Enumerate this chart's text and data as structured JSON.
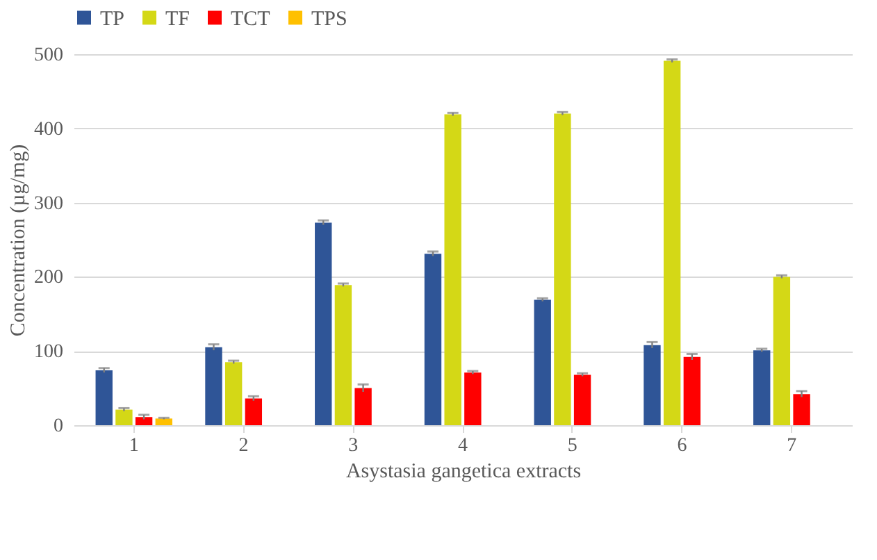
{
  "chart_data": {
    "type": "bar",
    "xlabel": "Asystasia gangetica extracts",
    "ylabel": "Concentration (µg/mg)",
    "categories": [
      "1",
      "2",
      "3",
      "4",
      "5",
      "6",
      "7"
    ],
    "series": [
      {
        "name": "TP",
        "color": "#2f5597",
        "values": [
          74,
          105,
          273,
          231,
          169,
          108,
          101
        ],
        "errors": [
          3,
          4,
          3,
          3,
          2,
          4,
          2
        ]
      },
      {
        "name": "TF",
        "color": "#d4d816",
        "values": [
          21,
          85,
          189,
          419,
          420,
          491,
          200
        ],
        "errors": [
          2,
          2,
          2,
          2,
          2,
          2,
          2
        ]
      },
      {
        "name": "TCT",
        "color": "#ff0000",
        "values": [
          11,
          36,
          50,
          71,
          68,
          92,
          42
        ],
        "errors": [
          3,
          3,
          5,
          2,
          2,
          4,
          4
        ]
      },
      {
        "name": "TPS",
        "color": "#ffc000",
        "values": [
          9,
          0,
          0,
          0,
          0,
          0,
          0
        ],
        "errors": [
          1,
          null,
          null,
          null,
          null,
          null,
          null
        ]
      }
    ],
    "ylim": [
      0,
      500
    ],
    "yticks": [
      0,
      100,
      200,
      300,
      400,
      500
    ],
    "grid": "y",
    "legend": "top"
  }
}
